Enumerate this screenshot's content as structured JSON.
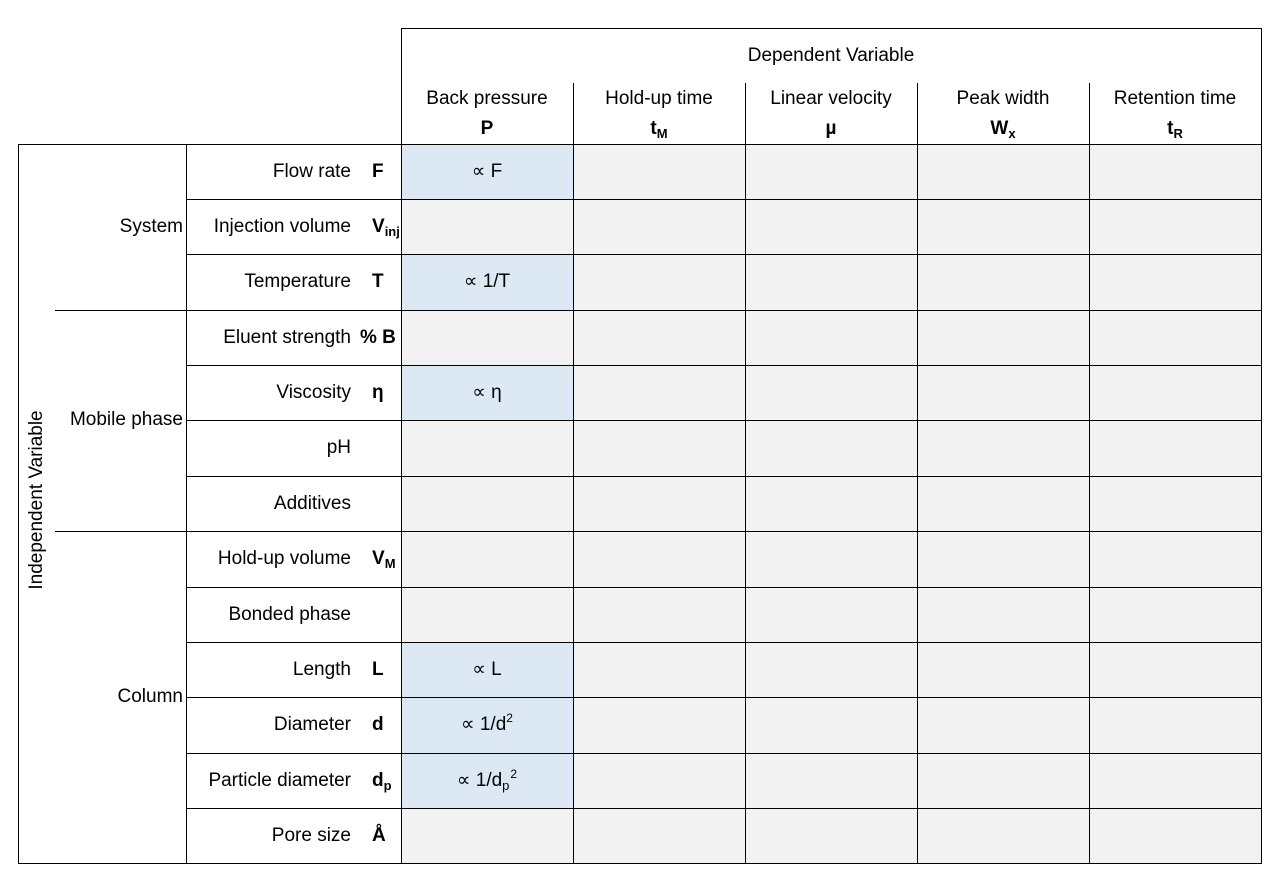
{
  "dependent": {
    "title": "Dependent Variable",
    "columns": [
      {
        "label": "Back pressure",
        "sym": "P",
        "sub": ""
      },
      {
        "label": "Hold-up time",
        "sym": "t",
        "sub": "M"
      },
      {
        "label": "Linear velocity",
        "sym": "µ",
        "sub": ""
      },
      {
        "label": "Peak width",
        "sym": "W",
        "sub": "x"
      },
      {
        "label": "Retention time",
        "sym": "t",
        "sub": "R"
      }
    ]
  },
  "independent": {
    "title": "Independent Variable",
    "groups": [
      {
        "label": "System"
      },
      {
        "label": "Mobile phase"
      },
      {
        "label": "Column"
      }
    ],
    "rows": [
      {
        "label": "Flow rate",
        "sym": "F",
        "sub": "",
        "value": "∝ F"
      },
      {
        "label": "Injection volume",
        "sym": "V",
        "sub": "inj",
        "value": ""
      },
      {
        "label": "Temperature",
        "sym": "T",
        "sub": "",
        "value": "∝ 1/T"
      },
      {
        "label": "Eluent strength",
        "sym": "% B",
        "sub": "",
        "value": ""
      },
      {
        "label": "Viscosity",
        "sym": "η",
        "sub": "",
        "value": "∝ η"
      },
      {
        "label": "pH",
        "sym": "",
        "sub": "",
        "value": ""
      },
      {
        "label": "Additives",
        "sym": "",
        "sub": "",
        "value": ""
      },
      {
        "label": "Hold-up volume",
        "sym": "V",
        "sub": "M",
        "value": ""
      },
      {
        "label": "Bonded phase",
        "sym": "",
        "sub": "",
        "value": ""
      },
      {
        "label": "Length",
        "sym": "L",
        "sub": "",
        "value": "∝ L"
      },
      {
        "label": "Diameter",
        "sym": "d",
        "sub": "",
        "value": "∝ 1/d"
      },
      {
        "label": "Particle diameter",
        "sym": "d",
        "sub": "p",
        "value": "∝ 1/d"
      },
      {
        "label": "Pore size",
        "sym": "Å",
        "sub": "",
        "value": ""
      }
    ]
  },
  "value_extras": {
    "diameter_sup": "2",
    "particle_sub": "p",
    "particle_sup": "2"
  },
  "colors": {
    "cell_empty": "#f2f2f2",
    "cell_highlight": "#dce9f5",
    "border": "#000000"
  }
}
